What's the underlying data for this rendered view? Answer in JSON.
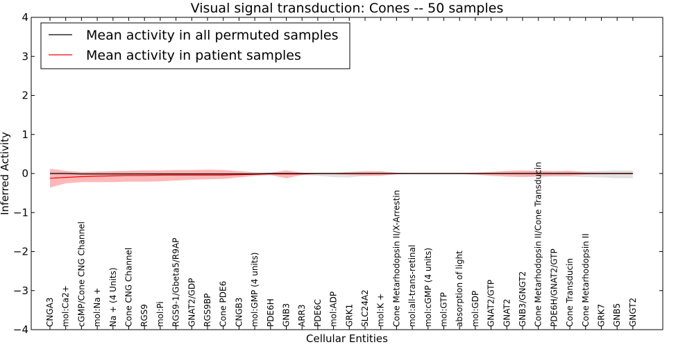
{
  "chart_data": {
    "type": "line",
    "title": "Visual signal transduction: Cones -- 50 samples",
    "xlabel": "Cellular Entities",
    "ylabel": "Inferred Activity",
    "ylim": [
      -4,
      4
    ],
    "yticks": [
      4,
      3,
      2,
      1,
      0,
      -1,
      -2,
      -3,
      -4
    ],
    "ytick_labels": [
      "4",
      "3",
      "2",
      "1",
      "0",
      "−1",
      "−2",
      "−3",
      "−4"
    ],
    "legend_position": "upper-left",
    "categories": [
      "CNGA3",
      "mol:Ca2+",
      "cGMP/Cone CNG Channel",
      "mol:Na +",
      "Na + (4 Units)",
      "Cone CNG Channel",
      "RGS9",
      "mol:Pi",
      "RGS9-1/Gbeta5/R9AP",
      "GNAT2/GDP",
      "RGS9BP",
      "Cone PDE6",
      "CNGB3",
      "mol:GMP (4 units)",
      "PDE6H",
      "GNB3",
      "ARR3",
      "PDE6C",
      "mol:ADP",
      "GRK1",
      "SLC24A2",
      "mol:K +",
      "Cone Metarhodopsin II/X-Arrestin",
      "mol:all-trans-retinal",
      "mol:cGMP (4 units)",
      "mol:GTP",
      "absorption of light",
      "mol:GDP",
      "GNAT2/GTP",
      "GNAT2",
      "GNB3/GNGT2",
      "Cone Metarhodopsin II/Cone Transducin",
      "PDE6H/GNAT2/GTP",
      "Cone Transducin",
      "Cone Metarhodopsin II",
      "GRK7",
      "GNB5",
      "GNGT2"
    ],
    "series": [
      {
        "name": "Mean activity in all permuted samples",
        "color": "#000000",
        "band_color": "#c8c8c8",
        "values": [
          0.0,
          0.0,
          -0.01,
          -0.01,
          -0.01,
          -0.01,
          -0.01,
          -0.01,
          -0.01,
          -0.01,
          -0.01,
          -0.01,
          -0.01,
          -0.01,
          0.0,
          0.0,
          0.0,
          0.0,
          0.0,
          0.0,
          0.0,
          0.0,
          0.0,
          0.0,
          0.0,
          0.0,
          0.0,
          0.0,
          0.0,
          0.0,
          0.0,
          0.0,
          0.0,
          0.0,
          0.0,
          0.0,
          0.0,
          0.0
        ],
        "upper": [
          0.04,
          0.03,
          0.03,
          0.04,
          0.05,
          0.05,
          0.05,
          0.05,
          0.05,
          0.05,
          0.05,
          0.05,
          0.04,
          0.03,
          0.02,
          0.02,
          0.02,
          0.02,
          0.02,
          0.02,
          0.02,
          0.02,
          0.02,
          0.02,
          0.02,
          0.02,
          0.02,
          0.02,
          0.02,
          0.03,
          0.05,
          0.06,
          0.06,
          0.06,
          0.06,
          0.07,
          0.08,
          0.08
        ],
        "lower": [
          -0.04,
          -0.05,
          -0.06,
          -0.06,
          -0.07,
          -0.07,
          -0.07,
          -0.07,
          -0.07,
          -0.07,
          -0.07,
          -0.07,
          -0.06,
          -0.05,
          -0.03,
          -0.03,
          -0.04,
          -0.06,
          -0.09,
          -0.1,
          -0.06,
          -0.04,
          -0.02,
          -0.02,
          -0.02,
          -0.02,
          -0.02,
          -0.02,
          -0.02,
          -0.03,
          -0.06,
          -0.08,
          -0.08,
          -0.08,
          -0.09,
          -0.1,
          -0.12,
          -0.12
        ]
      },
      {
        "name": "Mean activity in patient samples",
        "color": "#ff0000",
        "band_color": "#ff9a9a",
        "values": [
          -0.12,
          -0.1,
          -0.08,
          -0.07,
          -0.06,
          -0.05,
          -0.05,
          -0.04,
          -0.04,
          -0.04,
          -0.04,
          -0.04,
          -0.03,
          -0.02,
          -0.01,
          -0.01,
          -0.01,
          0.0,
          0.0,
          0.0,
          0.0,
          0.0,
          0.0,
          0.0,
          0.0,
          0.0,
          0.0,
          0.0,
          0.0,
          0.0,
          0.0,
          0.0,
          0.0,
          0.0,
          0.0,
          0.0,
          0.0,
          0.0
        ],
        "upper": [
          0.12,
          0.07,
          0.04,
          0.05,
          0.06,
          0.07,
          0.08,
          0.08,
          0.09,
          0.09,
          0.1,
          0.09,
          0.06,
          0.03,
          0.02,
          0.08,
          0.02,
          0.01,
          0.01,
          0.04,
          0.06,
          0.06,
          0.02,
          0.01,
          0.01,
          0.01,
          0.01,
          0.02,
          0.04,
          0.07,
          0.08,
          0.07,
          0.06,
          0.07,
          0.03,
          0.02,
          0.02,
          0.02
        ],
        "lower": [
          -0.36,
          -0.25,
          -0.22,
          -0.22,
          -0.22,
          -0.21,
          -0.21,
          -0.2,
          -0.18,
          -0.16,
          -0.15,
          -0.14,
          -0.1,
          -0.06,
          -0.04,
          -0.12,
          -0.04,
          -0.02,
          -0.02,
          -0.04,
          -0.06,
          -0.06,
          -0.02,
          -0.01,
          -0.01,
          -0.01,
          -0.01,
          -0.03,
          -0.06,
          -0.08,
          -0.09,
          -0.08,
          -0.06,
          -0.06,
          -0.03,
          -0.02,
          -0.02,
          -0.02
        ]
      }
    ]
  }
}
